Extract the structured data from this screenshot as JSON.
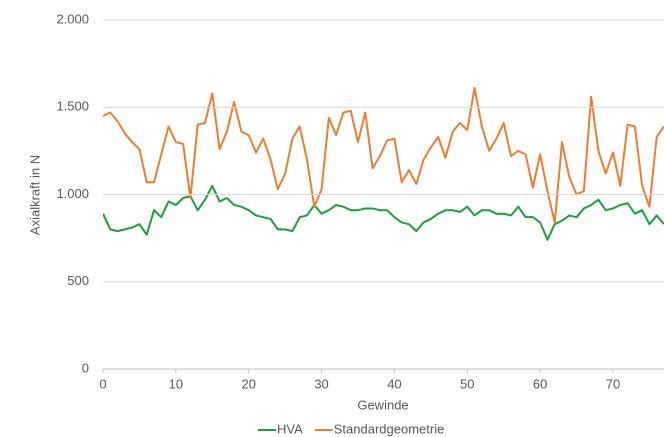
{
  "chart_data": {
    "type": "line",
    "xlabel": "Gewinde",
    "ylabel": "Axialkraft in N",
    "x": [
      0,
      1,
      2,
      3,
      4,
      5,
      6,
      7,
      8,
      9,
      10,
      11,
      12,
      13,
      14,
      15,
      16,
      17,
      18,
      19,
      20,
      21,
      22,
      23,
      24,
      25,
      26,
      27,
      28,
      29,
      30,
      31,
      32,
      33,
      34,
      35,
      36,
      37,
      38,
      39,
      40,
      41,
      42,
      43,
      44,
      45,
      46,
      47,
      48,
      49,
      50,
      51,
      52,
      53,
      54,
      55,
      56,
      57,
      58,
      59,
      60,
      61,
      62,
      63,
      64,
      65,
      66,
      67,
      68,
      69,
      70,
      71,
      72,
      73,
      74,
      75,
      76,
      77
    ],
    "series": [
      {
        "name": "HVA",
        "color": "#1e9e3c",
        "values": [
          890,
          800,
          790,
          800,
          810,
          830,
          770,
          910,
          870,
          960,
          940,
          980,
          990,
          910,
          970,
          1050,
          960,
          980,
          940,
          930,
          910,
          880,
          870,
          860,
          800,
          800,
          790,
          870,
          880,
          940,
          890,
          910,
          940,
          930,
          910,
          910,
          920,
          920,
          910,
          910,
          870,
          840,
          830,
          790,
          840,
          860,
          890,
          910,
          910,
          900,
          930,
          880,
          910,
          910,
          890,
          890,
          880,
          930,
          870,
          870,
          840,
          740,
          830,
          850,
          880,
          870,
          920,
          940,
          970,
          910,
          920,
          940,
          950,
          890,
          910,
          830,
          880,
          830
        ]
      },
      {
        "name": "Standardgeometrie",
        "color": "#ed7d31",
        "values": [
          1450,
          1470,
          1420,
          1350,
          1300,
          1260,
          1070,
          1070,
          1230,
          1390,
          1300,
          1290,
          980,
          1400,
          1410,
          1580,
          1260,
          1360,
          1530,
          1360,
          1340,
          1240,
          1320,
          1200,
          1030,
          1120,
          1320,
          1390,
          1200,
          930,
          1030,
          1440,
          1340,
          1470,
          1480,
          1300,
          1470,
          1150,
          1220,
          1310,
          1320,
          1070,
          1140,
          1060,
          1200,
          1270,
          1330,
          1210,
          1360,
          1410,
          1370,
          1610,
          1390,
          1250,
          1320,
          1410,
          1220,
          1250,
          1230,
          1040,
          1230,
          1020,
          840,
          1300,
          1100,
          1000,
          1020,
          1560,
          1250,
          1120,
          1240,
          1050,
          1400,
          1390,
          1050,
          930,
          1330,
          1390
        ]
      }
    ],
    "xlim": [
      0,
      77
    ],
    "xticks": [
      0,
      10,
      20,
      30,
      40,
      50,
      60,
      70
    ],
    "ylim": [
      0,
      2000
    ],
    "yticks": [
      0,
      500,
      {
        "value": 1000,
        "label": "1.000"
      },
      {
        "value": 1500,
        "label": "1.500"
      },
      {
        "value": 2000,
        "label": "2.000"
      }
    ],
    "grid": true,
    "legend": "bottom"
  }
}
